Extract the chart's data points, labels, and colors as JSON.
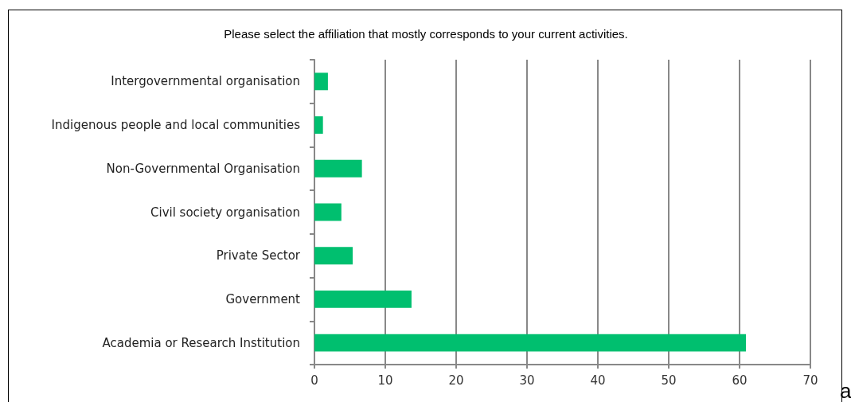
{
  "chart_data": {
    "type": "bar",
    "orientation": "horizontal",
    "title": "Please select the affiliation that mostly corresponds to your current activities.",
    "categories": [
      "Intergovernmental organisation",
      "Indigenous people and local communities",
      "Non-Governmental Organisation",
      "Civil society organisation",
      "Private Sector",
      "Government",
      "Academia or Research Institution"
    ],
    "values": [
      1.9,
      1.2,
      6.7,
      3.8,
      5.4,
      13.7,
      60.9
    ],
    "color": "#00bf6f",
    "xlim": [
      0,
      70
    ],
    "xticks": [
      0,
      10,
      20,
      30,
      40,
      50,
      60,
      70
    ],
    "grid": "x",
    "annotations": [
      "a"
    ]
  }
}
